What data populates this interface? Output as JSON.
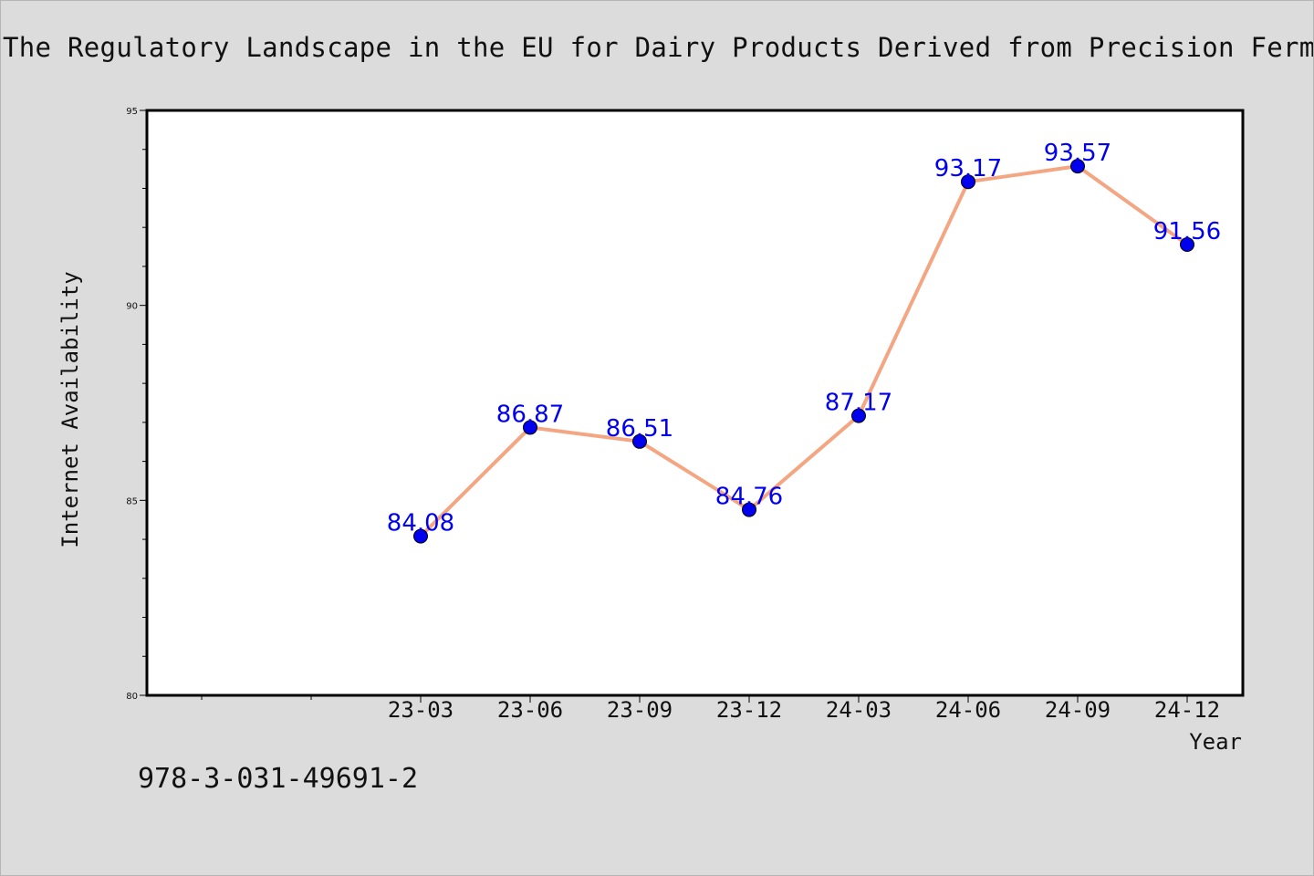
{
  "chart_data": {
    "type": "line",
    "title": "The Regulatory Landscape in the EU for Dairy Products Derived from Precision Fermentation",
    "xlabel": "Year",
    "ylabel": "Internet Availability",
    "categories": [
      "23-03",
      "23-06",
      "23-09",
      "23-12",
      "24-03",
      "24-06",
      "24-09",
      "24-12"
    ],
    "series": [
      {
        "values": [
          84.08,
          86.87,
          86.51,
          84.76,
          87.17,
          93.17,
          93.57,
          91.56
        ],
        "line_color": "#f4a582",
        "marker_color": "#0000ee"
      }
    ],
    "data_labels": [
      "84.08",
      "86.87",
      "86.51",
      "84.76",
      "87.17",
      "93.17",
      "93.57",
      "91.56"
    ],
    "ylim": [
      80,
      95
    ],
    "yticks": [
      "80",
      "85",
      "90",
      "95"
    ],
    "grid": false,
    "legend": "none",
    "label_color": "#0000ee"
  },
  "footer": {
    "code": "978-3-031-49691-2"
  }
}
